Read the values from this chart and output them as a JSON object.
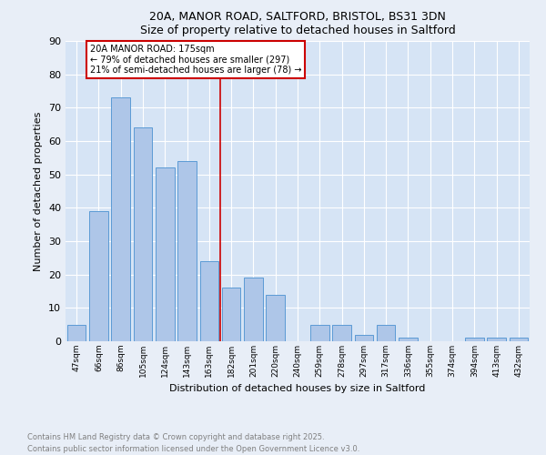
{
  "title_line1": "20A, MANOR ROAD, SALTFORD, BRISTOL, BS31 3DN",
  "title_line2": "Size of property relative to detached houses in Saltford",
  "xlabel": "Distribution of detached houses by size in Saltford",
  "ylabel": "Number of detached properties",
  "categories": [
    "47sqm",
    "66sqm",
    "86sqm",
    "105sqm",
    "124sqm",
    "143sqm",
    "163sqm",
    "182sqm",
    "201sqm",
    "220sqm",
    "240sqm",
    "259sqm",
    "278sqm",
    "297sqm",
    "317sqm",
    "336sqm",
    "355sqm",
    "374sqm",
    "394sqm",
    "413sqm",
    "432sqm"
  ],
  "values": [
    5,
    39,
    73,
    64,
    52,
    54,
    24,
    16,
    19,
    14,
    0,
    5,
    5,
    2,
    5,
    1,
    0,
    0,
    1,
    1,
    1
  ],
  "bar_color": "#aec6e8",
  "bar_edge_color": "#5b9bd5",
  "vline_x_index": 7,
  "vline_color": "#cc0000",
  "annotation_text": "20A MANOR ROAD: 175sqm\n← 79% of detached houses are smaller (297)\n21% of semi-detached houses are larger (78) →",
  "annotation_box_color": "#ffffff",
  "annotation_box_edge": "#cc0000",
  "ylim": [
    0,
    90
  ],
  "yticks": [
    0,
    10,
    20,
    30,
    40,
    50,
    60,
    70,
    80,
    90
  ],
  "bg_color": "#e8eef7",
  "plot_bg_color": "#d6e4f5",
  "footnote": "Contains HM Land Registry data © Crown copyright and database right 2025.\nContains public sector information licensed under the Open Government Licence v3.0.",
  "footnote_color": "#808080",
  "grid_color": "#ffffff"
}
